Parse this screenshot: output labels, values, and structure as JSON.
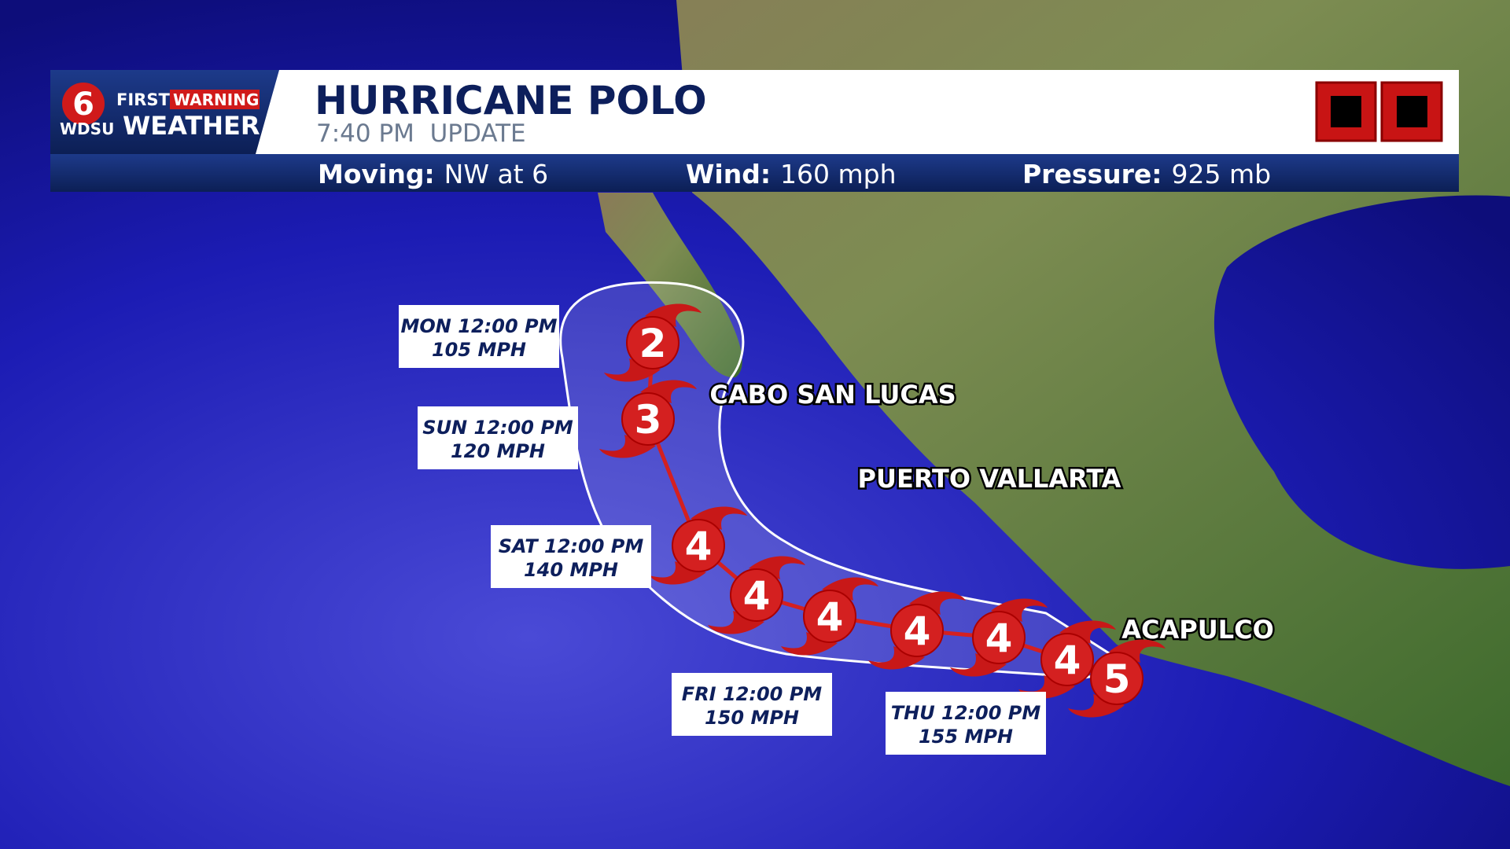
{
  "logo": {
    "channel": "6",
    "first": "FIRST",
    "warning": "WARNING",
    "station": "WDSU",
    "weather": "WEATHER"
  },
  "header": {
    "title": "HURRICANE POLO",
    "subtitle": "7:40 PM  UPDATE"
  },
  "stats": [
    {
      "label": "Moving:",
      "value": "NW at 6"
    },
    {
      "label": "Wind:",
      "value": "160 mph"
    },
    {
      "label": "Pressure:",
      "value": "925 mb"
    }
  ],
  "cities": [
    "CABO SAN LUCAS",
    "PUERTO VALLARTA",
    "ACAPULCO"
  ],
  "track": [
    {
      "category": 5
    },
    {
      "category": 4
    },
    {
      "category": 4
    },
    {
      "category": 4
    },
    {
      "category": 4
    },
    {
      "category": 4
    },
    {
      "category": 4
    },
    {
      "category": 3
    },
    {
      "category": 2
    }
  ],
  "labels": [
    {
      "time": "MON 12:00 PM",
      "speed": "105 MPH"
    },
    {
      "time": "SUN 12:00 PM",
      "speed": "120 MPH"
    },
    {
      "time": "SAT 12:00 PM",
      "speed": "140 MPH"
    },
    {
      "time": "FRI 12:00 PM",
      "speed": "150 MPH"
    },
    {
      "time": "THU 12:00 PM",
      "speed": "155 MPH"
    }
  ]
}
